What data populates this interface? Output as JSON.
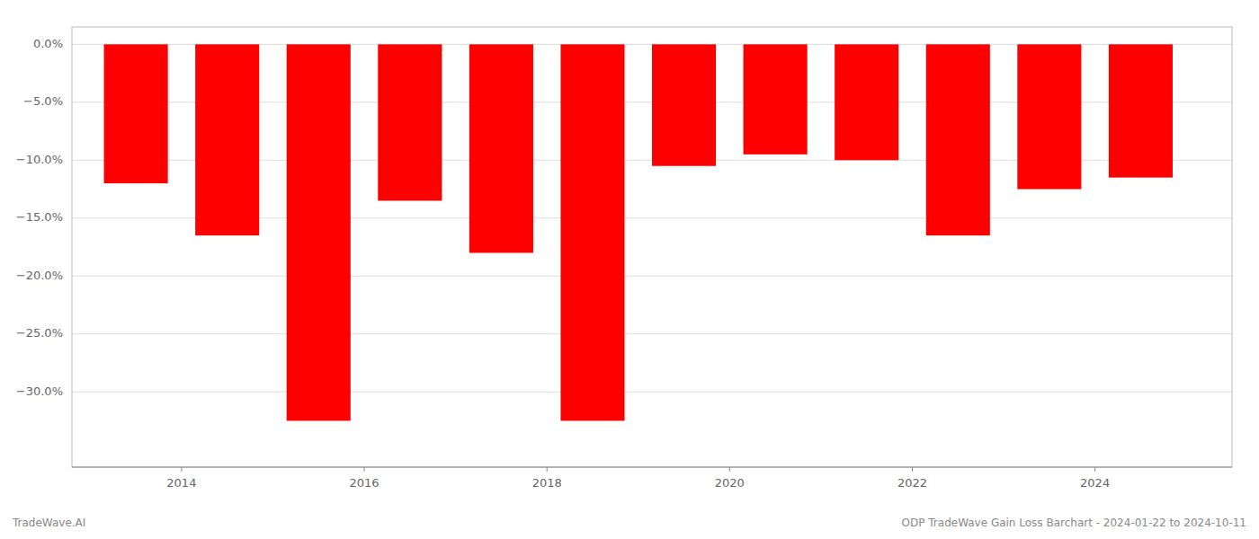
{
  "chart_data": {
    "type": "bar",
    "x": [
      2013.5,
      2014.5,
      2015.5,
      2016.5,
      2017.5,
      2018.5,
      2019.5,
      2020.5,
      2021.5,
      2022.5,
      2023.5,
      2024.5
    ],
    "values": [
      -0.12,
      -0.165,
      -0.325,
      -0.135,
      -0.18,
      -0.325,
      -0.105,
      -0.095,
      -0.1,
      -0.165,
      -0.125,
      -0.115
    ],
    "color": "#ff0000",
    "xlim": [
      2012.8,
      2025.5
    ],
    "xticks": [
      2014,
      2016,
      2018,
      2020,
      2022,
      2024
    ],
    "ylim": [
      -0.365,
      0.015
    ],
    "yticks": [
      {
        "value": 0.0,
        "label": "0.0%"
      },
      {
        "value": -0.05,
        "label": "−5.0%"
      },
      {
        "value": -0.1,
        "label": "−10.0%"
      },
      {
        "value": -0.15,
        "label": "−15.0%"
      },
      {
        "value": -0.2,
        "label": "−20.0%"
      },
      {
        "value": -0.25,
        "label": "−25.0%"
      },
      {
        "value": -0.3,
        "label": "−30.0%"
      }
    ],
    "grid": true,
    "annotations": [
      "TradeWave.AI",
      "ODP TradeWave Gain Loss Barchart - 2024-01-22 to 2024-10-11"
    ]
  }
}
